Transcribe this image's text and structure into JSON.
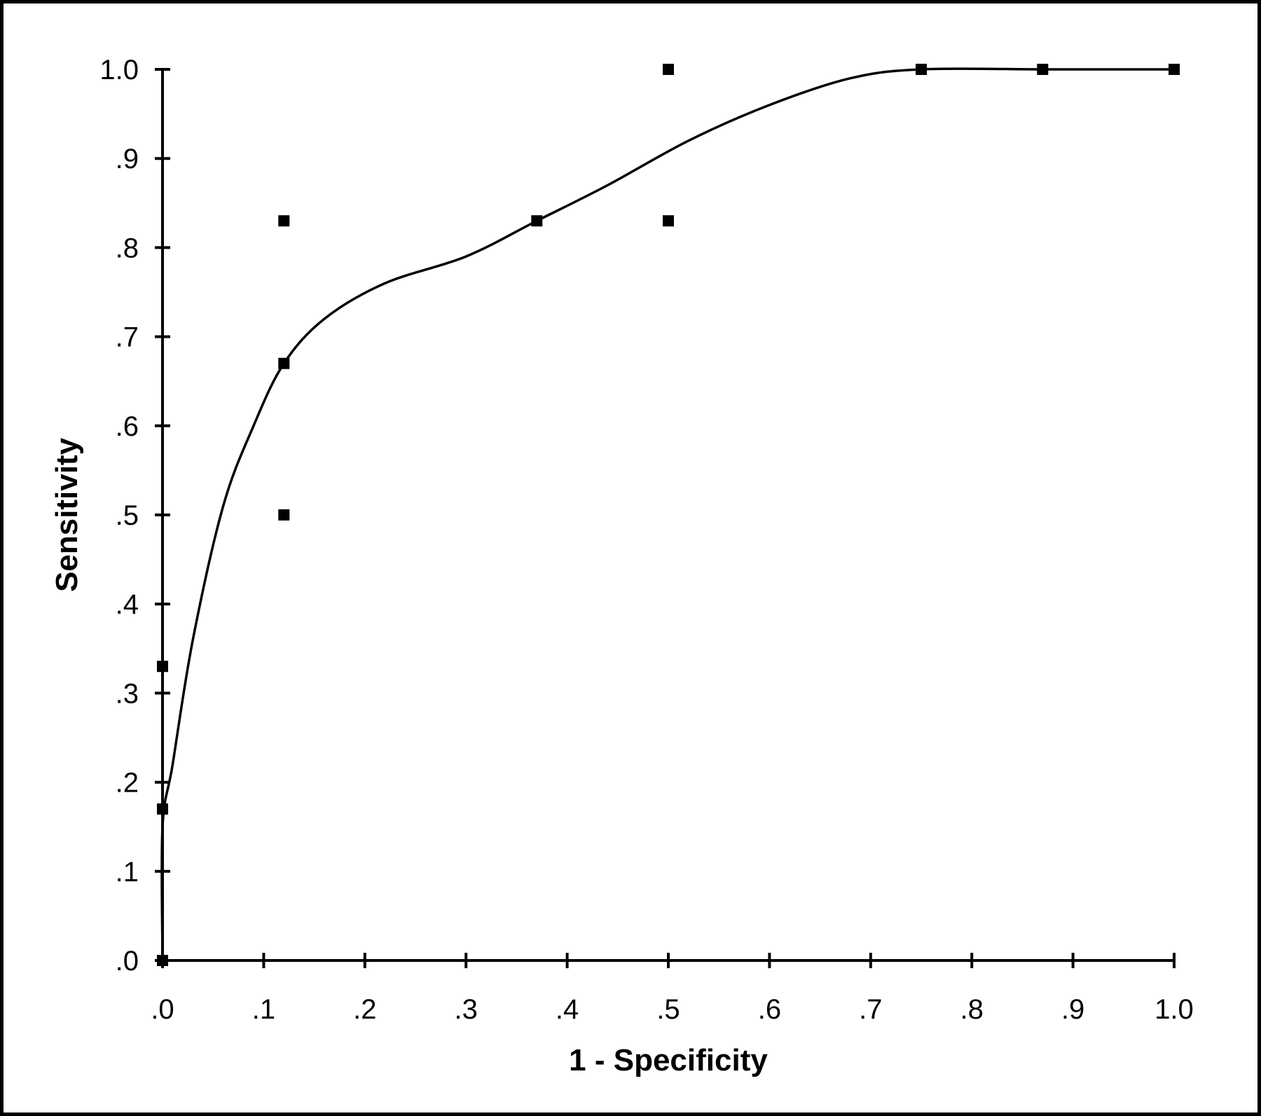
{
  "chart_data": {
    "type": "scatter",
    "title": "",
    "xlabel": "1 - Specificity",
    "ylabel": "Sensitivity",
    "xlim": [
      0,
      1
    ],
    "ylim": [
      0,
      1
    ],
    "grid": false,
    "legend": "none",
    "x_ticks": [
      0,
      0.1,
      0.2,
      0.3,
      0.4,
      0.5,
      0.6,
      0.7,
      0.8,
      0.9,
      1.0
    ],
    "x_tick_labels": [
      ".0",
      ".1",
      ".2",
      ".3",
      ".4",
      ".5",
      ".6",
      ".7",
      ".8",
      ".9",
      "1.0"
    ],
    "y_ticks": [
      0,
      0.1,
      0.2,
      0.3,
      0.4,
      0.5,
      0.6,
      0.7,
      0.8,
      0.9,
      1.0
    ],
    "y_tick_labels": [
      ".0",
      ".1",
      ".2",
      ".3",
      ".4",
      ".5",
      ".6",
      ".7",
      ".8",
      ".9",
      "1.0"
    ],
    "series": [
      {
        "type": "scatter",
        "points": [
          {
            "x": 0.0,
            "y": 0.0
          },
          {
            "x": 0.0,
            "y": 0.17
          },
          {
            "x": 0.0,
            "y": 0.33
          },
          {
            "x": 0.12,
            "y": 0.5
          },
          {
            "x": 0.12,
            "y": 0.67
          },
          {
            "x": 0.12,
            "y": 0.83
          },
          {
            "x": 0.37,
            "y": 0.83
          },
          {
            "x": 0.5,
            "y": 0.83
          },
          {
            "x": 0.5,
            "y": 1.0
          },
          {
            "x": 0.75,
            "y": 1.0
          },
          {
            "x": 0.87,
            "y": 1.0
          },
          {
            "x": 1.0,
            "y": 1.0
          }
        ]
      },
      {
        "type": "line",
        "smooth": true,
        "points": [
          {
            "x": 0.0,
            "y": 0.0
          },
          {
            "x": 0.0,
            "y": 0.15
          },
          {
            "x": 0.01,
            "y": 0.22
          },
          {
            "x": 0.03,
            "y": 0.36
          },
          {
            "x": 0.06,
            "y": 0.51
          },
          {
            "x": 0.09,
            "y": 0.6
          },
          {
            "x": 0.12,
            "y": 0.67
          },
          {
            "x": 0.16,
            "y": 0.72
          },
          {
            "x": 0.22,
            "y": 0.76
          },
          {
            "x": 0.3,
            "y": 0.79
          },
          {
            "x": 0.37,
            "y": 0.83
          },
          {
            "x": 0.44,
            "y": 0.87
          },
          {
            "x": 0.52,
            "y": 0.92
          },
          {
            "x": 0.6,
            "y": 0.96
          },
          {
            "x": 0.68,
            "y": 0.99
          },
          {
            "x": 0.75,
            "y": 1.0
          },
          {
            "x": 0.87,
            "y": 1.0
          },
          {
            "x": 0.96,
            "y": 1.0
          },
          {
            "x": 1.0,
            "y": 1.0
          }
        ]
      }
    ]
  }
}
